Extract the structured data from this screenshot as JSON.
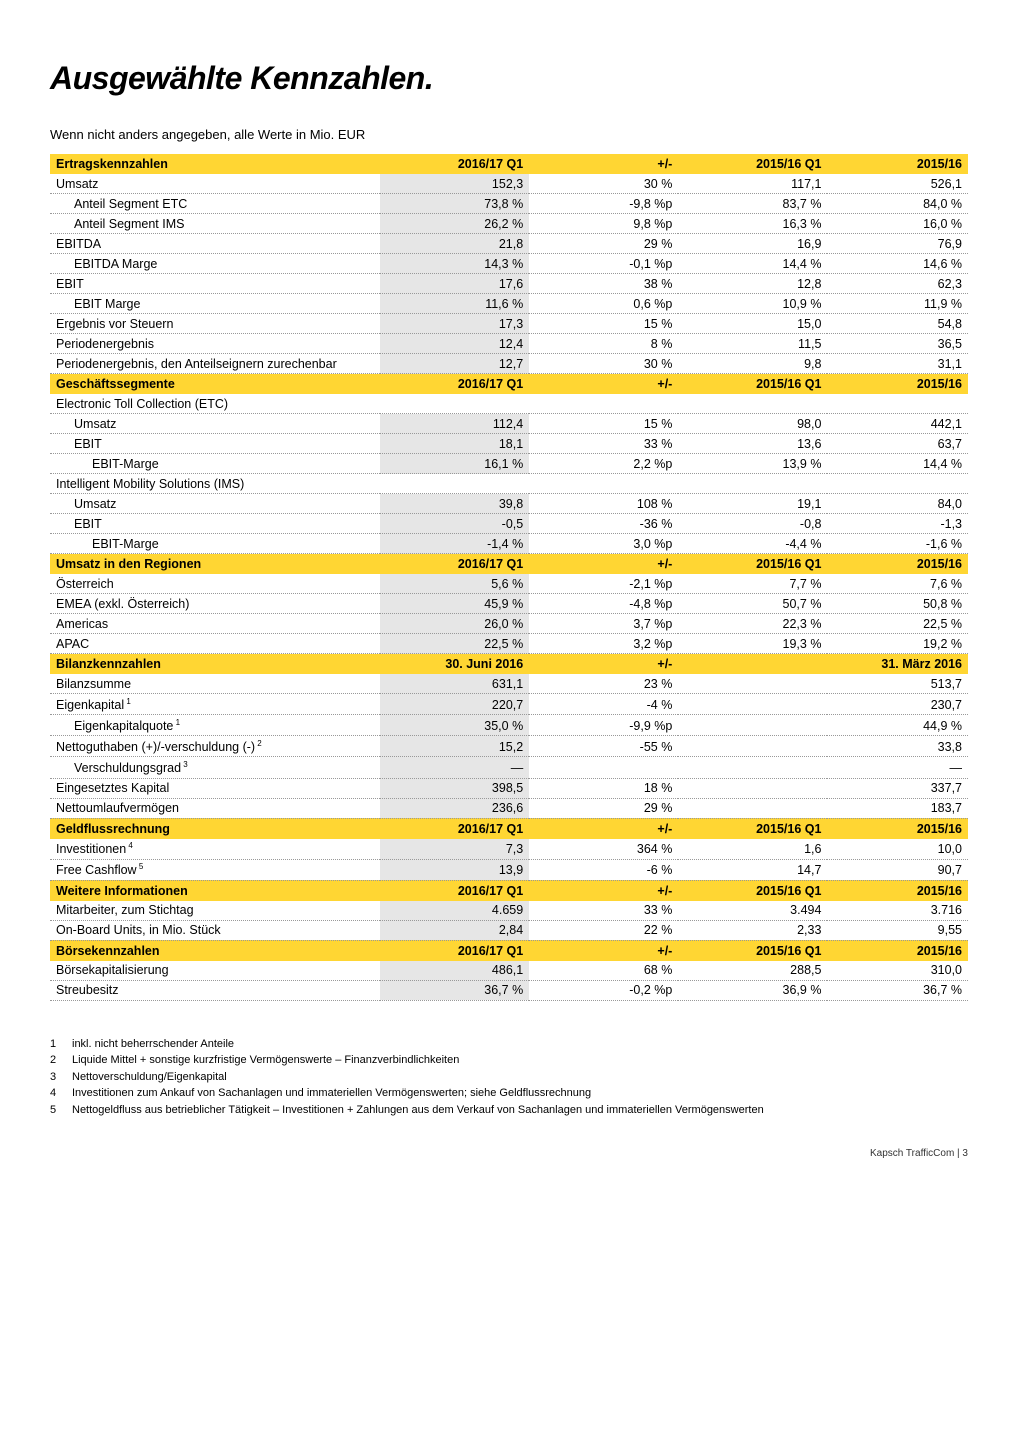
{
  "title": "Ausgewählte Kennzahlen.",
  "subtitle": "Wenn nicht anders angegeben, alle Werte in Mio. EUR",
  "colors": {
    "header_bg": "#ffd633",
    "shade_bg": "#e6e6e6",
    "dotted": "#999999"
  },
  "columns_default": [
    "2016/17 Q1",
    "+/-",
    "2015/16 Q1",
    "2015/16"
  ],
  "sections": [
    {
      "title": "Ertragskennzahlen",
      "cols": [
        "2016/17 Q1",
        "+/-",
        "2015/16 Q1",
        "2015/16"
      ],
      "rows": [
        {
          "label": "Umsatz",
          "indent": 0,
          "v": [
            "152,3",
            "30 %",
            "117,1",
            "526,1"
          ]
        },
        {
          "label": "Anteil Segment ETC",
          "indent": 1,
          "v": [
            "73,8 %",
            "-9,8 %p",
            "83,7 %",
            "84,0 %"
          ]
        },
        {
          "label": "Anteil Segment IMS",
          "indent": 1,
          "v": [
            "26,2 %",
            "9,8 %p",
            "16,3 %",
            "16,0 %"
          ]
        },
        {
          "label": "EBITDA",
          "indent": 0,
          "v": [
            "21,8",
            "29 %",
            "16,9",
            "76,9"
          ]
        },
        {
          "label": "EBITDA Marge",
          "indent": 1,
          "v": [
            "14,3 %",
            "-0,1 %p",
            "14,4 %",
            "14,6 %"
          ]
        },
        {
          "label": "EBIT",
          "indent": 0,
          "v": [
            "17,6",
            "38 %",
            "12,8",
            "62,3"
          ]
        },
        {
          "label": "EBIT Marge",
          "indent": 1,
          "v": [
            "11,6 %",
            "0,6 %p",
            "10,9 %",
            "11,9 %"
          ]
        },
        {
          "label": "Ergebnis vor Steuern",
          "indent": 0,
          "v": [
            "17,3",
            "15 %",
            "15,0",
            "54,8"
          ]
        },
        {
          "label": "Periodenergebnis",
          "indent": 0,
          "v": [
            "12,4",
            "8 %",
            "11,5",
            "36,5"
          ]
        },
        {
          "label": "Periodenergebnis, den Anteilseignern zurechenbar",
          "indent": 0,
          "v": [
            "12,7",
            "30 %",
            "9,8",
            "31,1"
          ]
        }
      ]
    },
    {
      "title": "Geschäftssegmente",
      "cols": [
        "2016/17 Q1",
        "+/-",
        "2015/16 Q1",
        "2015/16"
      ],
      "rows": [
        {
          "label": "Electronic Toll Collection (ETC)",
          "indent": 0,
          "v": [
            "",
            "",
            "",
            ""
          ],
          "noshade": true
        },
        {
          "label": "Umsatz",
          "indent": 1,
          "v": [
            "112,4",
            "15 %",
            "98,0",
            "442,1"
          ]
        },
        {
          "label": "EBIT",
          "indent": 1,
          "v": [
            "18,1",
            "33 %",
            "13,6",
            "63,7"
          ]
        },
        {
          "label": "EBIT-Marge",
          "indent": 2,
          "v": [
            "16,1 %",
            "2,2 %p",
            "13,9 %",
            "14,4 %"
          ]
        },
        {
          "label": "Intelligent Mobility Solutions (IMS)",
          "indent": 0,
          "v": [
            "",
            "",
            "",
            ""
          ],
          "noshade": true
        },
        {
          "label": "Umsatz",
          "indent": 1,
          "v": [
            "39,8",
            "108 %",
            "19,1",
            "84,0"
          ]
        },
        {
          "label": "EBIT",
          "indent": 1,
          "v": [
            "-0,5",
            "-36 %",
            "-0,8",
            "-1,3"
          ]
        },
        {
          "label": "EBIT-Marge",
          "indent": 2,
          "v": [
            "-1,4 %",
            "3,0 %p",
            "-4,4 %",
            "-1,6 %"
          ]
        }
      ]
    },
    {
      "title": "Umsatz in den Regionen",
      "cols": [
        "2016/17 Q1",
        "+/-",
        "2015/16 Q1",
        "2015/16"
      ],
      "rows": [
        {
          "label": "Österreich",
          "indent": 0,
          "v": [
            "5,6 %",
            "-2,1 %p",
            "7,7 %",
            "7,6 %"
          ]
        },
        {
          "label": "EMEA (exkl. Österreich)",
          "indent": 0,
          "v": [
            "45,9 %",
            "-4,8 %p",
            "50,7 %",
            "50,8 %"
          ]
        },
        {
          "label": "Americas",
          "indent": 0,
          "v": [
            "26,0 %",
            "3,7 %p",
            "22,3 %",
            "22,5 %"
          ]
        },
        {
          "label": "APAC",
          "indent": 0,
          "v": [
            "22,5 %",
            "3,2 %p",
            "19,3 %",
            "19,2 %"
          ]
        }
      ]
    },
    {
      "title": "Bilanzkennzahlen",
      "cols": [
        "30. Juni  2016",
        "+/-",
        "",
        "31. März 2016"
      ],
      "rows": [
        {
          "label": "Bilanzsumme",
          "indent": 0,
          "v": [
            "631,1",
            "23 %",
            "",
            "513,7"
          ]
        },
        {
          "label": "Eigenkapital",
          "sup": "1",
          "indent": 0,
          "v": [
            "220,7",
            "-4 %",
            "",
            "230,7"
          ]
        },
        {
          "label": "Eigenkapitalquote",
          "sup": "1",
          "indent": 1,
          "v": [
            "35,0 %",
            "-9,9 %p",
            "",
            "44,9 %"
          ]
        },
        {
          "label": "Nettoguthaben (+)/-verschuldung (-)",
          "sup": "2",
          "indent": 0,
          "v": [
            "15,2",
            "-55 %",
            "",
            "33,8"
          ]
        },
        {
          "label": "Verschuldungsgrad",
          "sup": "3",
          "indent": 1,
          "v": [
            "—",
            "",
            "",
            "—"
          ]
        },
        {
          "label": "Eingesetztes Kapital",
          "indent": 0,
          "v": [
            "398,5",
            "18 %",
            "",
            "337,7"
          ]
        },
        {
          "label": "Nettoumlaufvermögen",
          "indent": 0,
          "v": [
            "236,6",
            "29 %",
            "",
            "183,7"
          ]
        }
      ]
    },
    {
      "title": "Geldflussrechnung",
      "cols": [
        "2016/17 Q1",
        "+/-",
        "2015/16 Q1",
        "2015/16"
      ],
      "rows": [
        {
          "label": "Investitionen",
          "sup": "4",
          "indent": 0,
          "v": [
            "7,3",
            "364 %",
            "1,6",
            "10,0"
          ]
        },
        {
          "label": "Free Cashflow",
          "sup": "5",
          "indent": 0,
          "v": [
            "13,9",
            "-6 %",
            "14,7",
            "90,7"
          ]
        }
      ]
    },
    {
      "title": "Weitere Informationen",
      "cols": [
        "2016/17 Q1",
        "+/-",
        "2015/16 Q1",
        "2015/16"
      ],
      "rows": [
        {
          "label": "Mitarbeiter, zum Stichtag",
          "indent": 0,
          "v": [
            "4.659",
            "33 %",
            "3.494",
            "3.716"
          ]
        },
        {
          "label": "On-Board Units, in Mio. Stück",
          "indent": 0,
          "v": [
            "2,84",
            "22 %",
            "2,33",
            "9,55"
          ]
        }
      ]
    },
    {
      "title": "Börsekennzahlen",
      "cols": [
        "2016/17 Q1",
        "+/-",
        "2015/16 Q1",
        "2015/16"
      ],
      "rows": [
        {
          "label": "Börsekapitalisierung",
          "indent": 0,
          "v": [
            "486,1",
            "68 %",
            "288,5",
            "310,0"
          ]
        },
        {
          "label": "Streubesitz",
          "indent": 0,
          "v": [
            "36,7 %",
            "-0,2 %p",
            "36,9 %",
            "36,7 %"
          ]
        }
      ]
    }
  ],
  "footnotes": [
    {
      "n": "1",
      "t": "inkl. nicht beherrschender Anteile"
    },
    {
      "n": "2",
      "t": "Liquide Mittel + sonstige kurzfristige Vermögenswerte – Finanzverbindlichkeiten"
    },
    {
      "n": "3",
      "t": "Nettoverschuldung/Eigenkapital"
    },
    {
      "n": "4",
      "t": "Investitionen zum Ankauf von Sachanlagen und immateriellen Vermögenswerten; siehe Geldflussrechnung"
    },
    {
      "n": "5",
      "t": "Nettogeldfluss aus betrieblicher Tätigkeit – Investitionen + Zahlungen aus dem Verkauf von Sachanlagen und immateriellen Vermögenswerten"
    }
  ],
  "footer": "Kapsch TrafficCom | 3"
}
